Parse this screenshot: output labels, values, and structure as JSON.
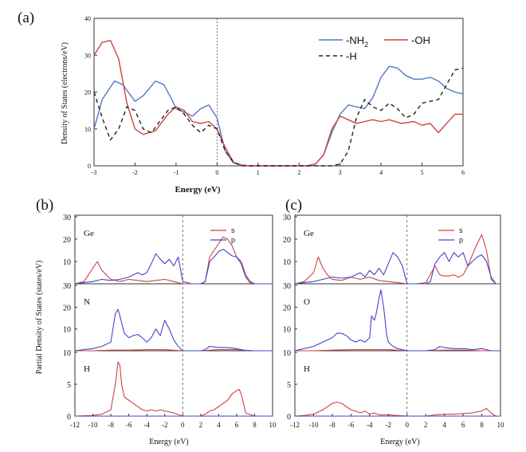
{
  "panel_a": {
    "label": "(a)",
    "chart_data": {
      "type": "line",
      "xlabel": "Energy (eV)",
      "ylabel": "Density of States (electrons/eV)",
      "xlim": [
        -3,
        6
      ],
      "ylim": [
        0,
        40
      ],
      "x_ticks": [
        -3,
        -2,
        -1,
        0,
        1,
        2,
        3,
        4,
        5,
        6
      ],
      "y_ticks": [
        0,
        10,
        20,
        30,
        40
      ],
      "fermi_level": 0,
      "legend": {
        "placement": "top-right",
        "nh2": "-NH",
        "nh2_sub": "2",
        "oh": "-OH",
        "h": "-H"
      },
      "series": [
        {
          "name": "-NH2",
          "color": "#5577c4",
          "dash": "",
          "x": [
            -3,
            -2.8,
            -2.5,
            -2.3,
            -2.1,
            -2.0,
            -1.8,
            -1.5,
            -1.3,
            -1.1,
            -1.0,
            -0.8,
            -0.6,
            -0.4,
            -0.2,
            0,
            0.2,
            0.4,
            0.6,
            0.8,
            1,
            1.5,
            2,
            2.2,
            2.4,
            2.6,
            2.8,
            3.0,
            3.2,
            3.4,
            3.6,
            3.8,
            4.0,
            4.2,
            4.4,
            4.6,
            4.8,
            5.0,
            5.2,
            5.4,
            5.6,
            5.8,
            6
          ],
          "y": [
            10,
            18,
            23,
            22,
            19,
            17.5,
            19,
            23,
            22,
            18,
            15.5,
            14.5,
            13.5,
            15.5,
            16.5,
            13,
            4,
            0.8,
            0.2,
            0,
            0,
            0,
            0,
            0,
            0.5,
            3,
            9,
            14,
            16.5,
            16,
            15.5,
            18.5,
            24,
            27,
            26.5,
            24.5,
            23.5,
            23.5,
            24,
            23,
            21,
            20,
            19.5
          ]
        },
        {
          "name": "-OH",
          "color": "#cc4444",
          "dash": "",
          "x": [
            -3,
            -2.8,
            -2.6,
            -2.4,
            -2.2,
            -2.0,
            -1.8,
            -1.5,
            -1.2,
            -1.0,
            -0.8,
            -0.6,
            -0.4,
            -0.2,
            0,
            0.2,
            0.4,
            0.6,
            0.8,
            1,
            1.5,
            2,
            2.2,
            2.4,
            2.6,
            2.8,
            3.0,
            3.2,
            3.4,
            3.6,
            3.8,
            4.0,
            4.2,
            4.5,
            4.8,
            5.0,
            5.2,
            5.4,
            5.6,
            5.8,
            6
          ],
          "y": [
            30,
            33.5,
            34,
            29,
            17,
            10,
            8.5,
            9.5,
            14,
            16,
            15,
            12,
            11.5,
            12,
            10,
            5,
            1,
            0.2,
            0,
            0,
            0,
            0,
            0,
            0.5,
            3,
            10,
            13.5,
            12.5,
            11.5,
            12,
            12.5,
            12,
            12.5,
            11.5,
            12,
            11,
            11.5,
            9,
            11.5,
            14,
            14
          ]
        },
        {
          "name": "-H",
          "color": "#222222",
          "dash": "5,4",
          "x": [
            -3,
            -2.8,
            -2.6,
            -2.4,
            -2.2,
            -2.0,
            -1.8,
            -1.6,
            -1.4,
            -1.2,
            -1.0,
            -0.8,
            -0.6,
            -0.4,
            -0.2,
            0,
            0.2,
            0.4,
            0.6,
            0.8,
            1,
            2,
            2.6,
            2.8,
            3.0,
            3.2,
            3.4,
            3.6,
            3.8,
            4.0,
            4.2,
            4.4,
            4.6,
            4.8,
            5.0,
            5.2,
            5.4,
            5.6,
            5.8,
            6
          ],
          "y": [
            20,
            13,
            7,
            10,
            16,
            15,
            10,
            9,
            12,
            15,
            16,
            14,
            11,
            9,
            11,
            10,
            4,
            1,
            0,
            0,
            0,
            0,
            0,
            0,
            0.5,
            4,
            13,
            18,
            16,
            15,
            17,
            15.5,
            13,
            14,
            17,
            17.5,
            18,
            22,
            26,
            26.5
          ]
        }
      ]
    }
  },
  "shared": {
    "ylabel": "Partial Density of States (states/eV)",
    "xlabel": "Energy (eV)",
    "xlim": [
      -12,
      10
    ],
    "x_ticks": [
      -12,
      -10,
      -8,
      -6,
      -4,
      -2,
      0,
      2,
      4,
      6,
      8,
      10
    ],
    "legend": {
      "placement": "top-right",
      "s": "s",
      "p": "p"
    },
    "colors": {
      "s": "#cc4444",
      "p": "#4444cc"
    }
  },
  "panel_b": {
    "label": "(b)",
    "chart_data": [
      {
        "type": "line",
        "element": "Ge",
        "ylim": [
          0,
          30
        ],
        "y_ticks": [
          10,
          20,
          30
        ],
        "show_legend": true,
        "series": [
          {
            "name": "s",
            "x": [
              -12,
              -11,
              -10,
              -9.5,
              -9,
              -8.5,
              -8,
              -7,
              -6,
              -5,
              -4,
              -3,
              -2,
              -1,
              0,
              1,
              2,
              2.5,
              3,
              3.5,
              4,
              4.5,
              5,
              5.5,
              6,
              6.5,
              7,
              7.5,
              8,
              10
            ],
            "y": [
              0,
              1,
              7,
              10,
              6,
              4,
              2,
              1,
              2,
              1.5,
              1,
              1.5,
              2,
              1,
              0,
              0,
              0,
              1,
              12,
              15,
              18,
              21,
              20,
              17,
              12,
              9,
              3,
              0.5,
              0,
              0
            ]
          },
          {
            "name": "p",
            "x": [
              -12,
              -11,
              -10,
              -9,
              -8,
              -7,
              -6,
              -5,
              -4.5,
              -4,
              -3.5,
              -3,
              -2.5,
              -2,
              -1.5,
              -1,
              -0.5,
              0,
              1,
              2,
              2.5,
              3,
              3.5,
              4,
              4.5,
              5,
              5.5,
              6,
              6.5,
              7,
              7.5,
              8,
              10
            ],
            "y": [
              0,
              0.5,
              1,
              2,
              1.5,
              2,
              3,
              5,
              4,
              5,
              9,
              13.5,
              11,
              9,
              11,
              8,
              12,
              1,
              0,
              0,
              1,
              10,
              12,
              14.5,
              15.5,
              14,
              12.5,
              12,
              10,
              4,
              1,
              0,
              0
            ]
          }
        ]
      },
      {
        "type": "line",
        "element": "N",
        "ylim": [
          0,
          30
        ],
        "y_ticks": [
          10,
          20,
          30
        ],
        "show_legend": false,
        "series": [
          {
            "name": "s",
            "x": [
              -12,
              -10,
              -8,
              -6,
              -4,
              -2,
              0,
              2,
              4,
              6,
              8,
              10
            ],
            "y": [
              0,
              0,
              0.3,
              0.3,
              0.5,
              0.5,
              0,
              0,
              0.5,
              0.5,
              0,
              0
            ]
          },
          {
            "name": "p",
            "x": [
              -12,
              -11,
              -10,
              -9,
              -8,
              -7.5,
              -7.2,
              -7,
              -6.5,
              -6,
              -5.5,
              -5,
              -4.5,
              -4,
              -3.5,
              -3,
              -2.5,
              -2,
              -1.5,
              -1,
              -0.5,
              0,
              1,
              2,
              2.5,
              3,
              4,
              5,
              6,
              6.5,
              7,
              8,
              10
            ],
            "y": [
              0,
              0.5,
              1,
              2,
              4,
              17,
              19,
              16,
              8,
              6,
              7,
              7.5,
              6,
              4,
              6,
              10,
              7,
              14,
              10,
              5,
              2,
              0,
              0,
              0,
              0.5,
              2,
              1.5,
              1.5,
              1,
              0.5,
              0,
              0,
              0
            ]
          }
        ]
      },
      {
        "type": "line",
        "element": "H",
        "ylim": [
          0,
          10
        ],
        "y_ticks": [
          0,
          5,
          10
        ],
        "show_legend": false,
        "series": [
          {
            "name": "s",
            "x": [
              -12,
              -10,
              -9,
              -8,
              -7.5,
              -7.2,
              -7,
              -6.8,
              -6.5,
              -6,
              -5.5,
              -5,
              -4.5,
              -4,
              -3.5,
              -3,
              -2.5,
              -2,
              -1,
              0,
              1,
              2,
              2.5,
              3,
              3.5,
              4,
              4.5,
              5,
              5.5,
              6,
              6.3,
              6.6,
              7,
              8,
              10
            ],
            "y": [
              0,
              0.1,
              0.3,
              1,
              5,
              8.5,
              8,
              5,
              3,
              2.5,
              2,
              1.5,
              1,
              0.8,
              1,
              0.8,
              1,
              0.8,
              0.5,
              0,
              0,
              0,
              0.3,
              0.8,
              1,
              1.5,
              2,
              2.5,
              3.5,
              4,
              4.2,
              3,
              0.5,
              0,
              0
            ]
          },
          {
            "name": "p",
            "x": [
              -12,
              10
            ],
            "y": [
              0,
              0
            ]
          }
        ]
      }
    ]
  },
  "panel_c": {
    "label": "(c)",
    "chart_data": [
      {
        "type": "line",
        "element": "Ge",
        "ylim": [
          0,
          30
        ],
        "y_ticks": [
          10,
          20,
          30
        ],
        "show_legend": true,
        "series": [
          {
            "name": "s",
            "x": [
              -12,
              -11,
              -10,
              -9.5,
              -9,
              -8.5,
              -8,
              -7,
              -6,
              -5,
              -4,
              -3,
              -2,
              -1,
              0,
              1,
              2,
              3,
              3.5,
              4,
              4.5,
              5,
              5.5,
              6,
              6.5,
              7,
              7.5,
              8,
              8.5,
              9,
              9.5,
              10
            ],
            "y": [
              0,
              1,
              5,
              12,
              7,
              4,
              2,
              1.5,
              3,
              2,
              3,
              1.5,
              1,
              0.5,
              0,
              0,
              0.5,
              8,
              4,
              3.5,
              3.5,
              4,
              3,
              4,
              8,
              13,
              18,
              22,
              15,
              2,
              0,
              0
            ]
          },
          {
            "name": "p",
            "x": [
              -12,
              -11,
              -10,
              -9,
              -8,
              -7,
              -6,
              -5.5,
              -5,
              -4.5,
              -4,
              -3.5,
              -3,
              -2.5,
              -2,
              -1.5,
              -1,
              -0.5,
              0,
              1,
              2,
              2.5,
              3,
              3.5,
              4,
              4.5,
              5,
              5.5,
              6,
              6.5,
              7,
              7.5,
              8,
              8.5,
              9,
              9.5,
              10
            ],
            "y": [
              0,
              0.5,
              1,
              2,
              3,
              2.5,
              3,
              4,
              5,
              3,
              6,
              4,
              7,
              4,
              9,
              14,
              12,
              8,
              0,
              0,
              0,
              1,
              9,
              12,
              14,
              10,
              14,
              12,
              14,
              8,
              10,
              12,
              13,
              10,
              3,
              0,
              0
            ]
          }
        ]
      },
      {
        "type": "line",
        "element": "O",
        "ylim": [
          0,
          30
        ],
        "y_ticks": [
          10,
          20,
          30
        ],
        "show_legend": false,
        "series": [
          {
            "name": "s",
            "x": [
              -12,
              -10,
              -8,
              -6,
              -4,
              -2,
              0,
              2,
              4,
              6,
              8,
              10
            ],
            "y": [
              0,
              0,
              0.3,
              0.5,
              0.5,
              0.5,
              0,
              0,
              0.3,
              0.3,
              0,
              0
            ]
          },
          {
            "name": "p",
            "x": [
              -12,
              -11,
              -10,
              -9,
              -8,
              -7.5,
              -7,
              -6.5,
              -6,
              -5.5,
              -5,
              -4.5,
              -4,
              -3.8,
              -3.5,
              -3.3,
              -3,
              -2.8,
              -2.5,
              -2.2,
              -2,
              -1.5,
              -1,
              0,
              1,
              2,
              3,
              3.5,
              4,
              5,
              6,
              7,
              8,
              8.5,
              9,
              10
            ],
            "y": [
              0,
              1,
              2,
              4,
              6,
              8,
              8,
              7,
              5,
              4,
              5,
              4,
              6,
              16,
              14,
              17,
              24,
              28,
              20,
              8,
              4,
              2,
              1,
              0,
              0,
              0,
              0.5,
              2,
              1.5,
              1,
              1,
              0.5,
              1,
              0.5,
              0,
              0
            ]
          }
        ]
      },
      {
        "type": "line",
        "element": "H",
        "ylim": [
          0,
          10
        ],
        "y_ticks": [
          0,
          5,
          10
        ],
        "show_legend": false,
        "series": [
          {
            "name": "s",
            "x": [
              -12,
              -11,
              -10,
              -9,
              -8,
              -7.5,
              -7,
              -6.5,
              -6,
              -5.5,
              -5,
              -4.5,
              -4,
              -3.5,
              -3,
              -2,
              -1,
              0,
              1,
              2,
              3,
              4,
              5,
              6,
              7,
              8,
              8.5,
              9,
              9.5,
              10
            ],
            "y": [
              0,
              0.1,
              0.3,
              1,
              2,
              2.2,
              2,
              1.5,
              1,
              0.8,
              0.5,
              0.8,
              0.3,
              0.5,
              0.2,
              0.2,
              0.1,
              0,
              0,
              0,
              0.2,
              0.3,
              0.3,
              0.4,
              0.5,
              0.8,
              1.2,
              0.5,
              0,
              0
            ]
          },
          {
            "name": "p",
            "x": [
              -12,
              10
            ],
            "y": [
              0,
              0
            ]
          }
        ]
      }
    ]
  }
}
